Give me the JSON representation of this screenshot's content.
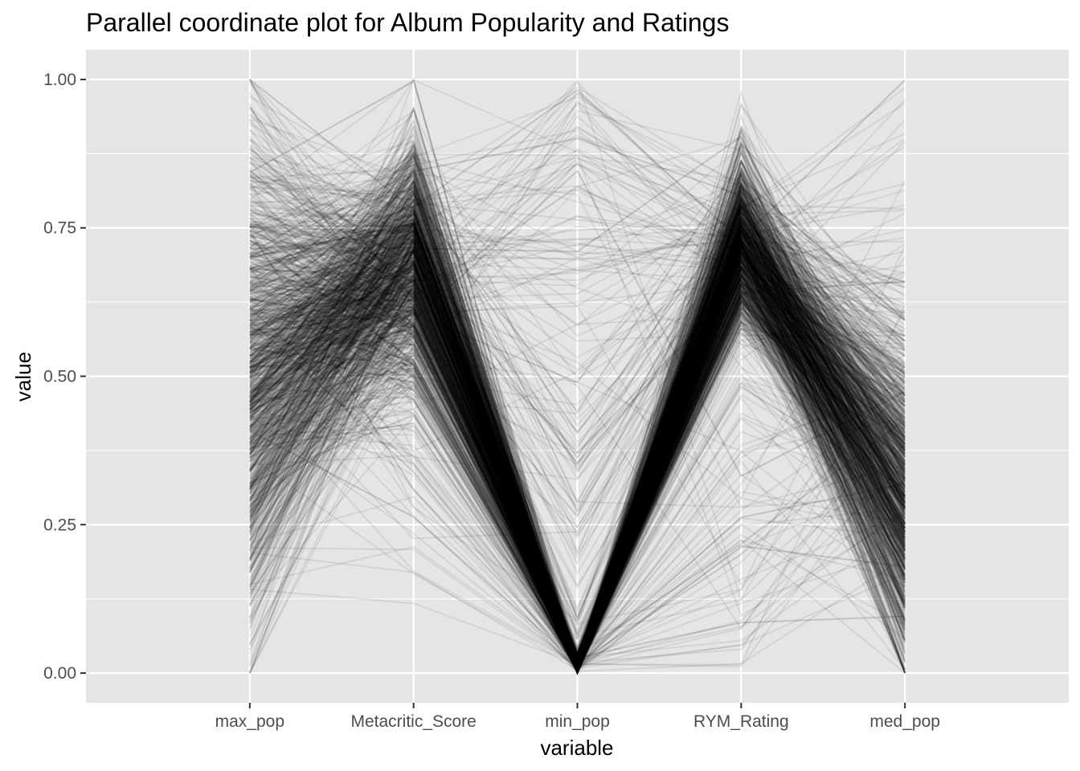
{
  "chart_data": {
    "type": "parallel-coordinates",
    "title": "Parallel coordinate plot for Album Popularity and Ratings",
    "xlabel": "variable",
    "ylabel": "value",
    "variables": [
      "max_pop",
      "Metacritic_Score",
      "min_pop",
      "RYM_Rating",
      "med_pop"
    ],
    "y_ticks": [
      "0.00",
      "0.25",
      "0.50",
      "0.75",
      "1.00"
    ],
    "y_tick_values": [
      0,
      0.25,
      0.5,
      0.75,
      1
    ],
    "ylim": [
      -0.05,
      1.05
    ],
    "grid": true,
    "line_color": "#000000",
    "line_alpha": 0.08,
    "panel_background": "#e5e5e5",
    "grid_color": "#ffffff",
    "line_count": 1200,
    "series_summary": [
      {
        "variable": "max_pop",
        "center": 0.5,
        "spread": 0.2,
        "range": [
          0,
          1
        ]
      },
      {
        "variable": "Metacritic_Score",
        "center": 0.7,
        "spread": 0.1,
        "range": [
          0,
          1
        ]
      },
      {
        "variable": "min_pop",
        "center": 0.0,
        "spread": 0.02,
        "range": [
          0,
          1
        ]
      },
      {
        "variable": "RYM_Rating",
        "center": 0.72,
        "spread": 0.07,
        "range": [
          0,
          1
        ]
      },
      {
        "variable": "med_pop",
        "center": 0.3,
        "spread": 0.15,
        "range": [
          0,
          1
        ]
      }
    ]
  }
}
